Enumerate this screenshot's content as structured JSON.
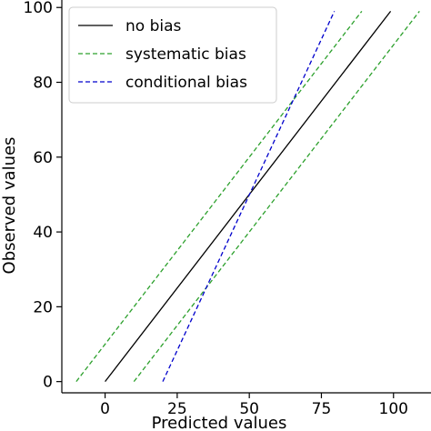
{
  "chart_data": {
    "type": "line",
    "xlabel": "Predicted values",
    "ylabel": "Observed values",
    "xlim": [
      -15,
      113
    ],
    "ylim": [
      -3,
      102
    ],
    "x_ticks": [
      0,
      25,
      50,
      75,
      100
    ],
    "y_ticks": [
      0,
      20,
      40,
      60,
      80,
      100
    ],
    "grid": false,
    "legend_position": "top-left",
    "series": [
      {
        "name": "no bias",
        "style": "solid",
        "color": "#000000",
        "x": [
          0,
          99
        ],
        "y": [
          0,
          99
        ]
      },
      {
        "name": "systematic bias",
        "style": "dashed",
        "color": "#2ca02c",
        "x": [
          -10,
          89
        ],
        "y": [
          0,
          99
        ]
      },
      {
        "name": "",
        "style": "dashed",
        "color": "#2ca02c",
        "x": [
          10,
          109
        ],
        "y": [
          0,
          99
        ]
      },
      {
        "name": "conditional bias",
        "style": "dashed",
        "color": "#0000cc",
        "x": [
          20,
          79.5
        ],
        "y": [
          0,
          99
        ]
      }
    ]
  }
}
